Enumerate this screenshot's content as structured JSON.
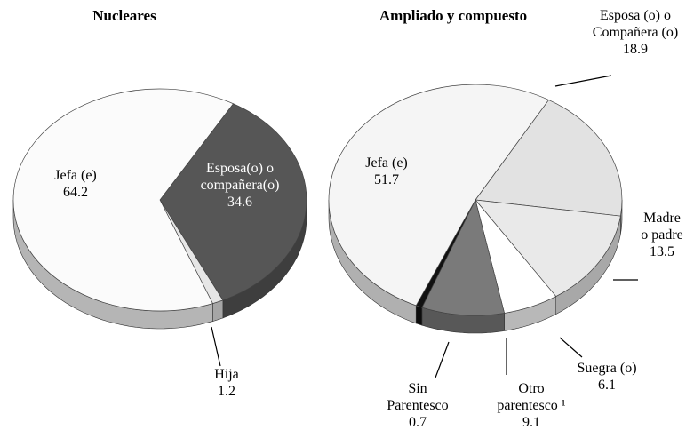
{
  "chart_data": [
    {
      "type": "pie",
      "title": "Nucleares",
      "categories": [
        "Esposa(o) o compañera(o)",
        "Hija",
        "Jefa (e)"
      ],
      "values": [
        34.6,
        1.2,
        64.2
      ],
      "colors": [
        "#565656",
        "#e6e6e6",
        "#fbfbfb"
      ]
    },
    {
      "type": "pie",
      "title": "Ampliado y compuesto",
      "categories": [
        "Esposa (o) o Compañera (o)",
        "Madre o padre",
        "Suegra (o)",
        "Otro parentesco ¹",
        "Sin Parentesco",
        "Jefa (e)"
      ],
      "values": [
        18.9,
        13.5,
        6.1,
        9.1,
        0.7,
        51.7
      ],
      "colors": [
        "#e2e2e2",
        "#e9e9e9",
        "#ffffff",
        "#7a7a7a",
        "#111111",
        "#f5f5f5"
      ]
    }
  ]
}
